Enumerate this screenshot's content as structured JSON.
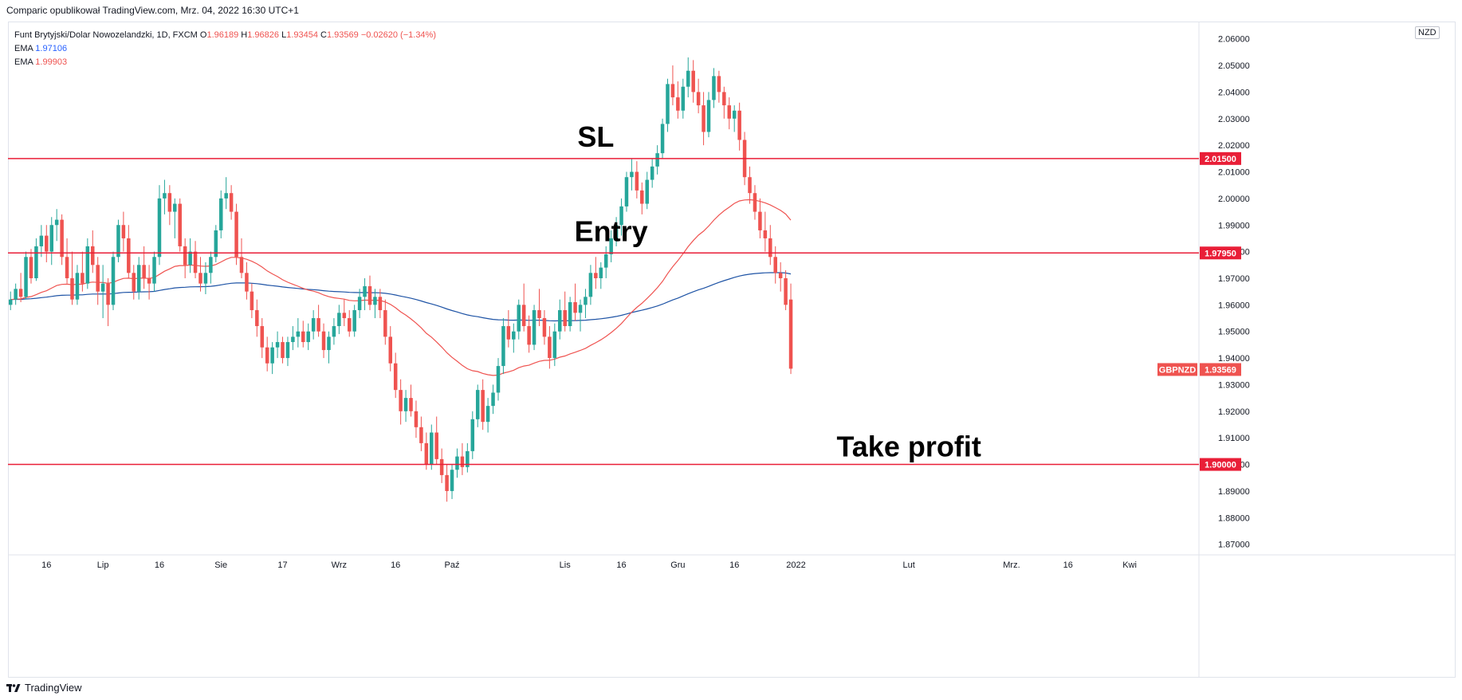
{
  "header": {
    "text": "Comparic opublikował TradingView.com, Mrz. 04, 2022 16:30 UTC+1"
  },
  "legend": {
    "symbol": "Funt Brytyjski/Dolar Nowozelandzki, 1D, FXCM",
    "open_label": "O",
    "open": "1.96189",
    "high_label": "H",
    "high": "1.96826",
    "low_label": "L",
    "low": "1.93454",
    "close_label": "C",
    "close": "1.93569",
    "change": "−0.02620 (−1.34%)",
    "ema1_label": "EMA",
    "ema1_value": "1.97106",
    "ema2_label": "EMA",
    "ema2_value": "1.99903"
  },
  "currency": "NZD",
  "footer": {
    "brand": "TradingView"
  },
  "colors": {
    "up": "#26a69a",
    "down": "#ef5350",
    "ema_fast": "#ef5350",
    "ema_slow": "#1e53a5",
    "level": "#e91e37"
  },
  "annotations": [
    {
      "text": "SL",
      "level": 2.015,
      "bar": 114
    },
    {
      "text": "Entry",
      "level": 1.9795,
      "bar": 117
    },
    {
      "text": "Take profit",
      "level": 1.9,
      "bar": 175
    }
  ],
  "chart_data": {
    "type": "candlestick",
    "symbol": "GBPNZD",
    "ylim": [
      1.866,
      2.0665
    ],
    "yticks": [
      "1.87000",
      "1.88000",
      "1.89000",
      "1.90000",
      "1.91000",
      "1.92000",
      "1.93000",
      "1.94000",
      "1.95000",
      "1.96000",
      "1.97000",
      "1.98000",
      "1.99000",
      "2.00000",
      "2.01000",
      "2.02000",
      "2.03000",
      "2.04000",
      "2.05000",
      "2.06000"
    ],
    "x_ticks": [
      {
        "label": "16",
        "bar": 7
      },
      {
        "label": "Lip",
        "bar": 18
      },
      {
        "label": "16",
        "bar": 29
      },
      {
        "label": "Sie",
        "bar": 41
      },
      {
        "label": "17",
        "bar": 53
      },
      {
        "label": "Wrz",
        "bar": 64
      },
      {
        "label": "16",
        "bar": 75
      },
      {
        "label": "Paź",
        "bar": 86
      },
      {
        "label": "Lis",
        "bar": 108
      },
      {
        "label": "16",
        "bar": 119
      },
      {
        "label": "Gru",
        "bar": 130
      },
      {
        "label": "16",
        "bar": 141
      },
      {
        "label": "2022",
        "bar": 153
      },
      {
        "label": "Lut",
        "bar": 175
      },
      {
        "label": "Mrz.",
        "bar": 195
      },
      {
        "label": "16",
        "bar": 206
      },
      {
        "label": "Kwi",
        "bar": 218
      }
    ],
    "price_lines": [
      {
        "value": 2.015,
        "label": "2.01500"
      },
      {
        "value": 1.9795,
        "label": "1.97950"
      },
      {
        "value": 1.9,
        "label": "1.90000"
      }
    ],
    "last_price": {
      "symbol": "GBPNZD",
      "value": 1.93569,
      "label": "1.93569"
    },
    "bars_total": 232,
    "ohlc": [
      [
        1.96,
        1.965,
        1.958,
        1.962
      ],
      [
        1.962,
        1.968,
        1.96,
        1.966
      ],
      [
        1.966,
        1.972,
        1.961,
        1.963
      ],
      [
        1.963,
        1.98,
        1.962,
        1.978
      ],
      [
        1.978,
        1.981,
        1.968,
        1.97
      ],
      [
        1.97,
        1.985,
        1.969,
        1.982
      ],
      [
        1.982,
        1.99,
        1.978,
        1.986
      ],
      [
        1.986,
        1.99,
        1.976,
        1.98
      ],
      [
        1.98,
        1.993,
        1.975,
        1.99
      ],
      [
        1.99,
        1.996,
        1.984,
        1.992
      ],
      [
        1.992,
        1.994,
        1.975,
        1.978
      ],
      [
        1.978,
        1.985,
        1.968,
        1.97
      ],
      [
        1.97,
        1.98,
        1.96,
        1.962
      ],
      [
        1.962,
        1.975,
        1.96,
        1.972
      ],
      [
        1.972,
        1.98,
        1.965,
        1.968
      ],
      [
        1.968,
        1.985,
        1.966,
        1.982
      ],
      [
        1.982,
        1.988,
        1.972,
        1.975
      ],
      [
        1.975,
        1.978,
        1.96,
        1.965
      ],
      [
        1.965,
        1.975,
        1.955,
        1.968
      ],
      [
        1.968,
        1.97,
        1.952,
        1.96
      ],
      [
        1.96,
        1.98,
        1.958,
        1.978
      ],
      [
        1.978,
        1.992,
        1.976,
        1.99
      ],
      [
        1.99,
        1.995,
        1.98,
        1.985
      ],
      [
        1.985,
        1.99,
        1.97,
        1.972
      ],
      [
        1.972,
        1.975,
        1.962,
        1.965
      ],
      [
        1.965,
        1.978,
        1.962,
        1.975
      ],
      [
        1.975,
        1.982,
        1.966,
        1.97
      ],
      [
        1.97,
        1.975,
        1.962,
        1.968
      ],
      [
        1.968,
        1.98,
        1.965,
        1.978
      ],
      [
        1.978,
        2.005,
        1.975,
        2.0
      ],
      [
        2.0,
        2.007,
        1.994,
        2.002
      ],
      [
        2.002,
        2.005,
        1.99,
        1.995
      ],
      [
        1.995,
        2.0,
        1.985,
        1.998
      ],
      [
        1.998,
        2.0,
        1.98,
        1.982
      ],
      [
        1.982,
        1.985,
        1.97,
        1.975
      ],
      [
        1.975,
        1.985,
        1.972,
        1.98
      ],
      [
        1.98,
        1.984,
        1.97,
        1.972
      ],
      [
        1.972,
        1.978,
        1.965,
        1.968
      ],
      [
        1.968,
        1.976,
        1.964,
        1.972
      ],
      [
        1.972,
        1.98,
        1.968,
        1.978
      ],
      [
        1.978,
        1.99,
        1.976,
        1.988
      ],
      [
        1.988,
        2.003,
        1.985,
        2.0
      ],
      [
        2.0,
        2.008,
        1.996,
        2.002
      ],
      [
        2.002,
        2.005,
        1.992,
        1.995
      ],
      [
        1.995,
        1.998,
        1.975,
        1.978
      ],
      [
        1.978,
        1.985,
        1.97,
        1.972
      ],
      [
        1.972,
        1.976,
        1.962,
        1.965
      ],
      [
        1.965,
        1.968,
        1.955,
        1.958
      ],
      [
        1.958,
        1.962,
        1.948,
        1.952
      ],
      [
        1.952,
        1.955,
        1.94,
        1.944
      ],
      [
        1.944,
        1.948,
        1.935,
        1.938
      ],
      [
        1.938,
        1.946,
        1.934,
        1.944
      ],
      [
        1.944,
        1.95,
        1.94,
        1.946
      ],
      [
        1.946,
        1.948,
        1.938,
        1.94
      ],
      [
        1.94,
        1.948,
        1.937,
        1.946
      ],
      [
        1.946,
        1.952,
        1.943,
        1.948
      ],
      [
        1.948,
        1.955,
        1.944,
        1.95
      ],
      [
        1.95,
        1.954,
        1.944,
        1.946
      ],
      [
        1.946,
        1.953,
        1.943,
        1.95
      ],
      [
        1.95,
        1.958,
        1.947,
        1.955
      ],
      [
        1.955,
        1.96,
        1.948,
        1.95
      ],
      [
        1.95,
        1.953,
        1.94,
        1.943
      ],
      [
        1.943,
        1.95,
        1.938,
        1.948
      ],
      [
        1.948,
        1.955,
        1.945,
        1.952
      ],
      [
        1.952,
        1.96,
        1.949,
        1.957
      ],
      [
        1.957,
        1.962,
        1.952,
        1.955
      ],
      [
        1.955,
        1.958,
        1.948,
        1.95
      ],
      [
        1.95,
        1.96,
        1.948,
        1.958
      ],
      [
        1.958,
        1.966,
        1.955,
        1.963
      ],
      [
        1.963,
        1.97,
        1.958,
        1.967
      ],
      [
        1.967,
        1.971,
        1.958,
        1.96
      ],
      [
        1.96,
        1.966,
        1.955,
        1.963
      ],
      [
        1.963,
        1.966,
        1.955,
        1.958
      ],
      [
        1.958,
        1.962,
        1.945,
        1.948
      ],
      [
        1.948,
        1.952,
        1.935,
        1.938
      ],
      [
        1.938,
        1.942,
        1.925,
        1.928
      ],
      [
        1.928,
        1.932,
        1.915,
        1.92
      ],
      [
        1.92,
        1.928,
        1.916,
        1.925
      ],
      [
        1.925,
        1.93,
        1.918,
        1.92
      ],
      [
        1.92,
        1.924,
        1.91,
        1.914
      ],
      [
        1.914,
        1.918,
        1.905,
        1.908
      ],
      [
        1.908,
        1.912,
        1.898,
        1.9
      ],
      [
        1.9,
        1.915,
        1.898,
        1.912
      ],
      [
        1.912,
        1.918,
        1.9,
        1.902
      ],
      [
        1.902,
        1.906,
        1.893,
        1.896
      ],
      [
        1.896,
        1.9,
        1.886,
        1.89
      ],
      [
        1.89,
        1.9,
        1.887,
        1.898
      ],
      [
        1.898,
        1.906,
        1.895,
        1.903
      ],
      [
        1.903,
        1.908,
        1.896,
        1.899
      ],
      [
        1.899,
        1.908,
        1.897,
        1.905
      ],
      [
        1.905,
        1.92,
        1.902,
        1.917
      ],
      [
        1.917,
        1.93,
        1.914,
        1.928
      ],
      [
        1.928,
        1.932,
        1.913,
        1.916
      ],
      [
        1.916,
        1.925,
        1.912,
        1.922
      ],
      [
        1.922,
        1.93,
        1.919,
        1.927
      ],
      [
        1.927,
        1.94,
        1.924,
        1.937
      ],
      [
        1.937,
        1.955,
        1.934,
        1.952
      ],
      [
        1.952,
        1.958,
        1.944,
        1.947
      ],
      [
        1.947,
        1.953,
        1.942,
        1.95
      ],
      [
        1.95,
        1.962,
        1.947,
        1.96
      ],
      [
        1.96,
        1.968,
        1.95,
        1.952
      ],
      [
        1.952,
        1.956,
        1.942,
        1.945
      ],
      [
        1.945,
        1.96,
        1.943,
        1.958
      ],
      [
        1.958,
        1.966,
        1.952,
        1.955
      ],
      [
        1.955,
        1.958,
        1.945,
        1.948
      ],
      [
        1.948,
        1.952,
        1.936,
        1.94
      ],
      [
        1.94,
        1.953,
        1.937,
        1.95
      ],
      [
        1.95,
        1.962,
        1.947,
        1.958
      ],
      [
        1.958,
        1.965,
        1.95,
        1.952
      ],
      [
        1.952,
        1.963,
        1.95,
        1.961
      ],
      [
        1.961,
        1.968,
        1.954,
        1.957
      ],
      [
        1.957,
        1.962,
        1.95,
        1.96
      ],
      [
        1.96,
        1.966,
        1.955,
        1.963
      ],
      [
        1.963,
        1.975,
        1.96,
        1.972
      ],
      [
        1.972,
        1.978,
        1.966,
        1.97
      ],
      [
        1.97,
        1.976,
        1.966,
        1.974
      ],
      [
        1.974,
        1.982,
        1.97,
        1.979
      ],
      [
        1.979,
        1.988,
        1.976,
        1.985
      ],
      [
        1.985,
        1.993,
        1.982,
        1.99
      ],
      [
        1.99,
        2.0,
        1.986,
        1.997
      ],
      [
        1.997,
        2.01,
        1.995,
        2.008
      ],
      [
        2.008,
        2.015,
        2.003,
        2.01
      ],
      [
        2.01,
        2.014,
        2.0,
        2.003
      ],
      [
        2.003,
        2.006,
        1.994,
        1.998
      ],
      [
        1.998,
        2.01,
        1.996,
        2.007
      ],
      [
        2.007,
        2.015,
        2.004,
        2.012
      ],
      [
        2.012,
        2.02,
        2.009,
        2.017
      ],
      [
        2.017,
        2.03,
        2.015,
        2.028
      ],
      [
        2.028,
        2.045,
        2.025,
        2.043
      ],
      [
        2.043,
        2.05,
        2.035,
        2.038
      ],
      [
        2.038,
        2.044,
        2.03,
        2.033
      ],
      [
        2.033,
        2.045,
        2.03,
        2.042
      ],
      [
        2.042,
        2.053,
        2.038,
        2.048
      ],
      [
        2.048,
        2.052,
        2.036,
        2.04
      ],
      [
        2.04,
        2.045,
        2.032,
        2.035
      ],
      [
        2.035,
        2.04,
        2.02,
        2.025
      ],
      [
        2.025,
        2.04,
        2.023,
        2.037
      ],
      [
        2.037,
        2.049,
        2.034,
        2.046
      ],
      [
        2.046,
        2.048,
        2.036,
        2.04
      ],
      [
        2.04,
        2.042,
        2.03,
        2.035
      ],
      [
        2.035,
        2.038,
        2.026,
        2.03
      ],
      [
        2.03,
        2.035,
        2.025,
        2.033
      ],
      [
        2.033,
        2.036,
        2.018,
        2.022
      ],
      [
        2.022,
        2.025,
        2.005,
        2.008
      ],
      [
        2.008,
        2.012,
        1.998,
        2.002
      ],
      [
        2.002,
        2.005,
        1.992,
        1.995
      ],
      [
        1.995,
        2.0,
        1.985,
        1.988
      ],
      [
        1.988,
        1.995,
        1.98,
        1.985
      ],
      [
        1.985,
        1.99,
        1.975,
        1.978
      ],
      [
        1.978,
        1.982,
        1.968,
        1.972
      ],
      [
        1.972,
        1.976,
        1.965,
        1.97
      ],
      [
        1.97,
        1.973,
        1.958,
        1.96
      ],
      [
        1.962,
        1.968,
        1.934,
        1.936
      ]
    ]
  }
}
